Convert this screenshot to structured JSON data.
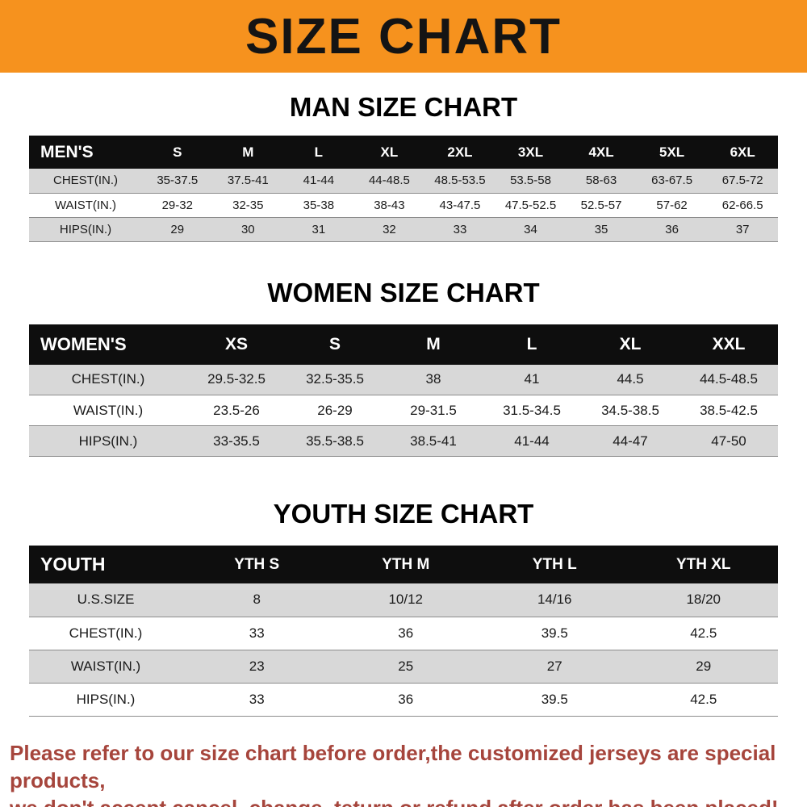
{
  "banner": {
    "title": "SIZE CHART"
  },
  "colors": {
    "banner_bg": "#f6921e",
    "table_header_bg": "#0e0e0e",
    "table_header_text": "#ffffff",
    "row_stripe_bg": "#d8d8d8",
    "footer_text": "#a6453c"
  },
  "chart_data": [
    {
      "type": "table",
      "title": "MAN SIZE CHART",
      "columns": [
        "MEN'S",
        "S",
        "M",
        "L",
        "XL",
        "2XL",
        "3XL",
        "4XL",
        "5XL",
        "6XL"
      ],
      "rows": [
        [
          "CHEST(IN.)",
          "35-37.5",
          "37.5-41",
          "41-44",
          "44-48.5",
          "48.5-53.5",
          "53.5-58",
          "58-63",
          "63-67.5",
          "67.5-72"
        ],
        [
          "WAIST(IN.)",
          "29-32",
          "32-35",
          "35-38",
          "38-43",
          "43-47.5",
          "47.5-52.5",
          "52.5-57",
          "57-62",
          "62-66.5"
        ],
        [
          "HIPS(IN.)",
          "29",
          "30",
          "31",
          "32",
          "33",
          "34",
          "35",
          "36",
          "37"
        ]
      ]
    },
    {
      "type": "table",
      "title": "WOMEN SIZE CHART",
      "columns": [
        "WOMEN'S",
        "XS",
        "S",
        "M",
        "L",
        "XL",
        "XXL"
      ],
      "rows": [
        [
          "CHEST(IN.)",
          "29.5-32.5",
          "32.5-35.5",
          "38",
          "41",
          "44.5",
          "44.5-48.5"
        ],
        [
          "WAIST(IN.)",
          "23.5-26",
          "26-29",
          "29-31.5",
          "31.5-34.5",
          "34.5-38.5",
          "38.5-42.5"
        ],
        [
          "HIPS(IN.)",
          "33-35.5",
          "35.5-38.5",
          "38.5-41",
          "41-44",
          "44-47",
          "47-50"
        ]
      ]
    },
    {
      "type": "table",
      "title": "YOUTH SIZE CHART",
      "columns": [
        "YOUTH",
        "YTH S",
        "YTH M",
        "YTH L",
        "YTH XL"
      ],
      "rows": [
        [
          "U.S.SIZE",
          "8",
          "10/12",
          "14/16",
          "18/20"
        ],
        [
          "CHEST(IN.)",
          "33",
          "36",
          "39.5",
          "42.5"
        ],
        [
          "WAIST(IN.)",
          "23",
          "25",
          "27",
          "29"
        ],
        [
          "HIPS(IN.)",
          "33",
          "36",
          "39.5",
          "42.5"
        ]
      ]
    }
  ],
  "footer": {
    "line1": "Please refer to our size chart before order,the customized jerseys are special products,",
    "line2": "we don't accept cancel, change, teturn or refund after order has been placed!"
  }
}
